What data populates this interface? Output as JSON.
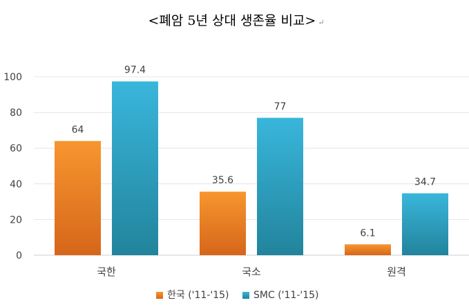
{
  "chart_data": {
    "type": "bar",
    "title": "<폐암 5년 상대 생존율 비교>",
    "title_suffix": "↵",
    "categories": [
      "국한",
      "국소",
      "원격"
    ],
    "series": [
      {
        "name": "한국 ('11-'15)",
        "values": [
          64,
          35.6,
          6.1
        ],
        "color": "#e9761f"
      },
      {
        "name": "SMC ('11-'15)",
        "values": [
          97.4,
          77,
          34.7
        ],
        "color": "#2ba7c9"
      }
    ],
    "data_labels": [
      [
        "64",
        "35.6",
        "6.1"
      ],
      [
        "97.4",
        "77",
        "34.7"
      ]
    ],
    "ylim": [
      0,
      100
    ],
    "yticks": [
      "0",
      "20",
      "40",
      "60",
      "80",
      "100"
    ],
    "xlabel": "",
    "ylabel": "",
    "grid": true,
    "legend_position": "bottom"
  }
}
